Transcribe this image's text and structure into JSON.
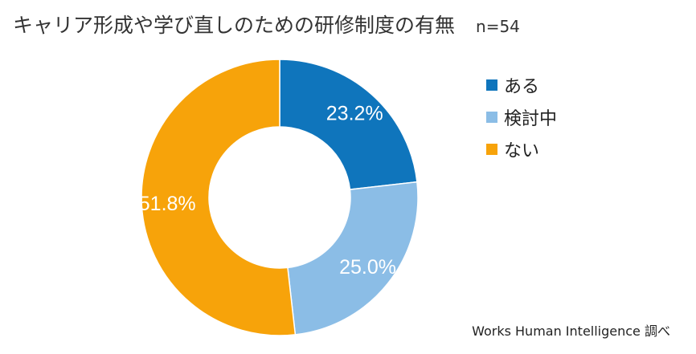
{
  "title": "キャリア形成や学び直しのための研修制度の有無",
  "sample_size": "n=54",
  "source": "Works Human Intelligence 調べ",
  "chart_data": {
    "type": "pie",
    "donut": true,
    "categories": [
      "ある",
      "検討中",
      "ない"
    ],
    "values": [
      23.2,
      25.0,
      51.8
    ],
    "value_labels": [
      "23.2%",
      "25.0%",
      "51.8%"
    ],
    "colors": [
      "#0f75bc",
      "#8bbde6",
      "#f7a30a"
    ],
    "legend_position": "right"
  }
}
